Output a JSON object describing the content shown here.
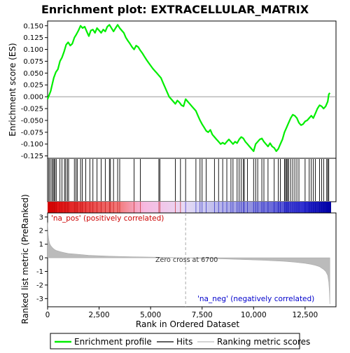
{
  "chart_data": {
    "type": "line",
    "title": "Enrichment plot: EXTRACELLULAR_MATRIX",
    "x_label": "Rank in Ordered Dataset",
    "es_panel": {
      "y_label": "Enrichment score (ES)",
      "ylim": [
        -0.13,
        0.16
      ],
      "y_ticks": [
        "0.150",
        "0.125",
        "0.100",
        "0.075",
        "0.050",
        "0.025",
        "0.000",
        "-0.025",
        "-0.050",
        "-0.075",
        "-0.100",
        "-0.125"
      ],
      "y_tick_values": [
        0.15,
        0.125,
        0.1,
        0.075,
        0.05,
        0.025,
        0,
        -0.025,
        -0.05,
        -0.075,
        -0.1,
        -0.125
      ],
      "series": {
        "name": "Enrichment profile",
        "color": "#00ee00",
        "x": [
          0,
          150,
          300,
          400,
          500,
          600,
          700,
          800,
          900,
          1000,
          1100,
          1200,
          1300,
          1400,
          1500,
          1600,
          1700,
          1800,
          1900,
          2000,
          2100,
          2200,
          2300,
          2400,
          2500,
          2600,
          2700,
          2800,
          2900,
          3000,
          3100,
          3200,
          3300,
          3400,
          3500,
          3600,
          3700,
          3800,
          3900,
          4000,
          4100,
          4200,
          4300,
          4400,
          4500,
          4600,
          4700,
          4800,
          4900,
          5000,
          5100,
          5200,
          5300,
          5400,
          5500,
          5600,
          5700,
          5800,
          5900,
          6000,
          6100,
          6200,
          6300,
          6400,
          6500,
          6600,
          6700,
          6800,
          6900,
          7000,
          7100,
          7200,
          7300,
          7400,
          7500,
          7600,
          7700,
          7800,
          7900,
          8000,
          8100,
          8200,
          8300,
          8400,
          8500,
          8600,
          8700,
          8800,
          8900,
          9000,
          9100,
          9200,
          9300,
          9400,
          9500,
          9600,
          9700,
          9800,
          9900,
          10000,
          10100,
          10200,
          10300,
          10400,
          10500,
          10600,
          10700,
          10800,
          10900,
          11000,
          11100,
          11200,
          11300,
          11400,
          11500,
          11600,
          11700,
          11800,
          11900,
          12000,
          12100,
          12200,
          12300,
          12400,
          12500,
          12600,
          12700,
          12800,
          12900,
          13000,
          13100,
          13200,
          13300,
          13400,
          13500,
          13600,
          13650,
          13700
        ],
        "y": [
          -0.005,
          0.012,
          0.04,
          0.052,
          0.058,
          0.075,
          0.083,
          0.095,
          0.11,
          0.115,
          0.108,
          0.112,
          0.125,
          0.132,
          0.14,
          0.15,
          0.145,
          0.148,
          0.138,
          0.128,
          0.14,
          0.142,
          0.135,
          0.145,
          0.14,
          0.135,
          0.142,
          0.138,
          0.148,
          0.152,
          0.145,
          0.138,
          0.145,
          0.152,
          0.145,
          0.14,
          0.135,
          0.125,
          0.118,
          0.112,
          0.105,
          0.1,
          0.108,
          0.105,
          0.098,
          0.092,
          0.085,
          0.078,
          0.072,
          0.066,
          0.06,
          0.055,
          0.05,
          0.045,
          0.04,
          0.03,
          0.02,
          0.01,
          0.0,
          -0.005,
          -0.01,
          -0.015,
          -0.008,
          -0.012,
          -0.018,
          -0.02,
          -0.005,
          -0.01,
          -0.015,
          -0.02,
          -0.025,
          -0.03,
          -0.04,
          -0.05,
          -0.058,
          -0.065,
          -0.072,
          -0.075,
          -0.07,
          -0.08,
          -0.085,
          -0.09,
          -0.095,
          -0.1,
          -0.097,
          -0.1,
          -0.095,
          -0.09,
          -0.095,
          -0.1,
          -0.095,
          -0.098,
          -0.09,
          -0.085,
          -0.088,
          -0.095,
          -0.1,
          -0.105,
          -0.11,
          -0.115,
          -0.1,
          -0.095,
          -0.09,
          -0.088,
          -0.095,
          -0.1,
          -0.105,
          -0.098,
          -0.105,
          -0.108,
          -0.115,
          -0.11,
          -0.1,
          -0.09,
          -0.075,
          -0.065,
          -0.055,
          -0.045,
          -0.038,
          -0.04,
          -0.045,
          -0.055,
          -0.06,
          -0.058,
          -0.052,
          -0.05,
          -0.045,
          -0.04,
          -0.045,
          -0.035,
          -0.025,
          -0.018,
          -0.02,
          -0.025,
          -0.02,
          -0.01,
          0.005,
          0.008
        ]
      }
    },
    "hits_panel": {
      "legend_label": "Hits",
      "x": [
        60,
        120,
        200,
        260,
        310,
        360,
        420,
        600,
        700,
        820,
        880,
        960,
        1020,
        1300,
        1380,
        1440,
        1600,
        1680,
        1850,
        2050,
        2200,
        2400,
        2600,
        2800,
        3000,
        3050,
        3200,
        3400,
        3500,
        4200,
        4500,
        5400,
        5450,
        6200,
        6450,
        6700,
        7200,
        7400,
        7500,
        7700,
        8100,
        8300,
        8500,
        8700,
        8900,
        9000,
        9200,
        9300,
        9400,
        9500,
        9550,
        9700,
        10000,
        10100,
        10200,
        10400,
        10500,
        10700,
        11000,
        11200,
        11300,
        11500,
        11550,
        11600,
        11650,
        11700,
        11800,
        11900,
        12000,
        12100,
        12200,
        12500,
        12700,
        12800,
        12900,
        13000,
        13200,
        13300,
        13400,
        13550,
        13600,
        13650
      ]
    },
    "rank_panel": {
      "y_label": "Ranked list metric (PreRanked)",
      "ylim": [
        -3.6,
        3.3
      ],
      "y_ticks": [
        "3",
        "2",
        "1",
        "0",
        "-1",
        "-2",
        "-3"
      ],
      "y_tick_values": [
        3,
        2,
        1,
        0,
        -1,
        -2,
        -3
      ],
      "legend_label": "Ranking metric scores",
      "color": "#bbbbbb",
      "x": [
        0,
        30,
        60,
        100,
        150,
        200,
        300,
        400,
        600,
        800,
        1000,
        1500,
        2000,
        3000,
        4000,
        5000,
        6000,
        6700,
        7500,
        8500,
        9500,
        10500,
        11500,
        12000,
        12500,
        12800,
        13000,
        13200,
        13300,
        13400,
        13500,
        13550,
        13600,
        13650,
        13680,
        13700
      ],
      "y": [
        2.6,
        1.7,
        1.3,
        1.05,
        0.9,
        0.8,
        0.65,
        0.55,
        0.45,
        0.38,
        0.32,
        0.25,
        0.18,
        0.12,
        0.08,
        0.05,
        0.02,
        0.0,
        -0.04,
        -0.08,
        -0.13,
        -0.18,
        -0.26,
        -0.32,
        -0.4,
        -0.48,
        -0.55,
        -0.65,
        -0.75,
        -0.85,
        -1.0,
        -1.15,
        -1.3,
        -1.8,
        -2.5,
        -3.4
      ]
    },
    "x_axis": {
      "xlim": [
        0,
        14000
      ],
      "ticks": [
        "0",
        "2,500",
        "5,000",
        "7,500",
        "10,000",
        "12,500"
      ],
      "tick_values": [
        0,
        2500,
        5000,
        7500,
        10000,
        12500
      ]
    },
    "annotations": {
      "pos_label": "'na_pos' (positively correlated)",
      "neg_label": "'na_neg' (negatively correlated)",
      "zero_cross": "Zero cross at 6700",
      "zero_cross_value": 6700,
      "pos_color": "#cc0000",
      "neg_color": "#0000cc"
    },
    "legend": {
      "entries": [
        "Enrichment profile",
        "Hits",
        "Ranking metric scores"
      ],
      "placement": "bottom"
    }
  }
}
